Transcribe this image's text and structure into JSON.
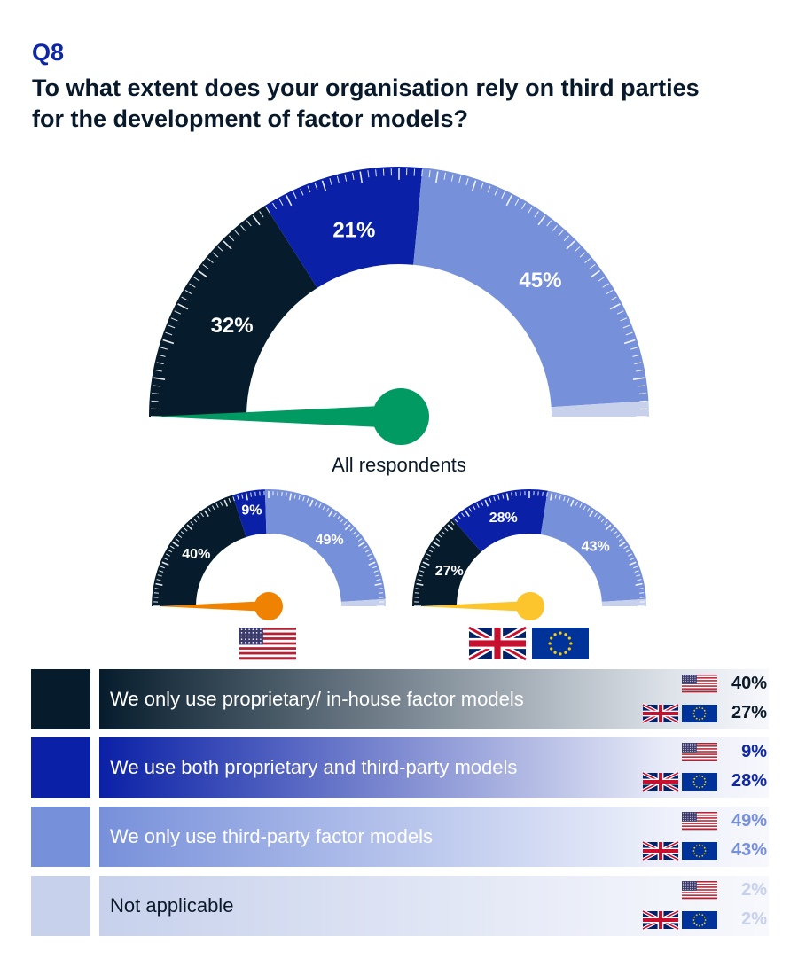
{
  "header": {
    "q_number": "Q8",
    "title": "To what extent does your organisation rely on third parties for the development of factor models?"
  },
  "colors": {
    "proprietary": "#061c2c",
    "both": "#0a20a6",
    "third_party": "#7790da",
    "not_applicable": "#c7d1ec",
    "needle_all": "#009a62",
    "needle_us": "#ef8200",
    "needle_uk_eu": "#fcc42d",
    "primary_text": "#0a1a28",
    "accent": "#0d27a6"
  },
  "chart_data": [
    {
      "type": "gauge",
      "title": "All respondents",
      "categories": [
        "We only use proprietary/ in-house factor models",
        "We use both proprietary and third-party models",
        "We only use third-party factor models",
        "Not applicable"
      ],
      "values": [
        32,
        21,
        45,
        2
      ],
      "labels": [
        "32%",
        "21%",
        "45%",
        ""
      ]
    },
    {
      "type": "gauge",
      "title": "",
      "region_icon": "us-flag-icon",
      "categories": [
        "We only use proprietary/ in-house factor models",
        "We use both proprietary and third-party models",
        "We only use third-party factor models",
        "Not applicable"
      ],
      "values": [
        40,
        9,
        49,
        2
      ],
      "labels": [
        "40%",
        "9%",
        "49%",
        ""
      ]
    },
    {
      "type": "gauge",
      "title": "",
      "region_icon": "uk-eu-flag-icon",
      "categories": [
        "We only use proprietary/ in-house factor models",
        "We use both proprietary and third-party models",
        "We only use third-party factor models",
        "Not applicable"
      ],
      "values": [
        27,
        28,
        43,
        2
      ],
      "labels": [
        "27%",
        "28%",
        "43%",
        ""
      ]
    }
  ],
  "legend": [
    {
      "label": "We only use proprietary/ in-house factor models",
      "us": "40%",
      "uk_eu": "27%"
    },
    {
      "label": "We use both proprietary and third-party models",
      "us": "9%",
      "uk_eu": "28%"
    },
    {
      "label": "We only use third-party factor models",
      "us": "49%",
      "uk_eu": "43%"
    },
    {
      "label": "Not applicable",
      "us": "2%",
      "uk_eu": "2%"
    }
  ]
}
